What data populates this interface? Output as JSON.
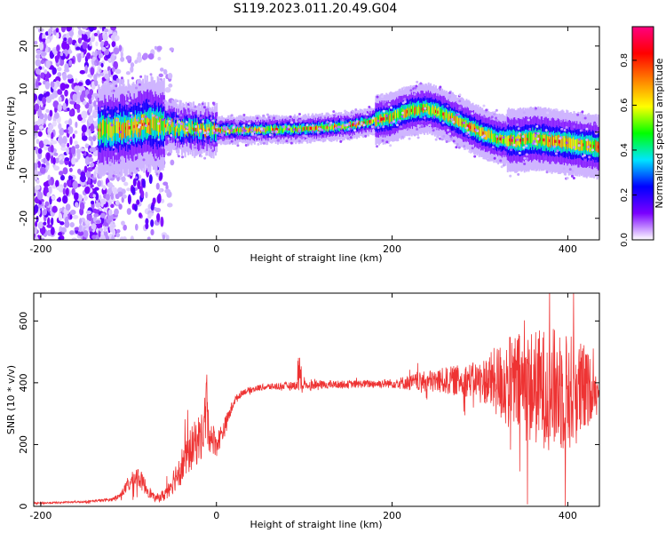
{
  "title": "S119.2023.011.20.49.G04",
  "chart_data": [
    {
      "type": "heatmap",
      "xlabel": "Height of straight line (km)",
      "ylabel": "Frequency (Hz)",
      "xlim": [
        -208,
        436
      ],
      "ylim": [
        -25,
        24.5
      ],
      "x_ticks": [
        -200,
        0,
        200,
        400
      ],
      "y_ticks": [
        -20,
        -10,
        0,
        10,
        20
      ],
      "colorbar": {
        "label": "Normalized spectral amplitude",
        "range": [
          0,
          0.95
        ],
        "ticks": [
          "0.0",
          "0.2",
          "0.4",
          "0.6",
          "0.8"
        ],
        "tick_values": [
          0,
          0.2,
          0.4,
          0.6,
          0.8
        ],
        "colors": [
          "#ffffff",
          "#7a00ff",
          "#0000ff",
          "#00e5ff",
          "#00ff00",
          "#ffff00",
          "#ff8000",
          "#ff0000",
          "#ff0080"
        ]
      },
      "center_track": {
        "x": [
          -130,
          -100,
          -80,
          -60,
          -40,
          -20,
          0,
          50,
          100,
          150,
          175,
          200,
          220,
          240,
          260,
          280,
          300,
          320,
          340,
          360,
          380,
          400,
          420,
          436
        ],
        "y": [
          0.5,
          1,
          2,
          1.5,
          0.8,
          0.5,
          0.5,
          0.5,
          0.8,
          1.5,
          2.5,
          3.5,
          5,
          5.5,
          4,
          2,
          0,
          -1.5,
          -2,
          -1.5,
          -2,
          -2.5,
          -3,
          -3.5
        ]
      }
    },
    {
      "type": "line",
      "xlabel": "Height of straight line (km)",
      "ylabel": "SNR (10 * v/v)",
      "xlim": [
        -208,
        436
      ],
      "ylim": [
        0,
        690
      ],
      "x_ticks": [
        -200,
        0,
        200,
        400
      ],
      "y_ticks": [
        0,
        200,
        400,
        600
      ],
      "series": [
        {
          "color": "#ee3333",
          "x": [
            -208,
            -180,
            -150,
            -120,
            -110,
            -100,
            -90,
            -80,
            -70,
            -60,
            -50,
            -40,
            -30,
            -20,
            -10,
            0,
            10,
            20,
            30,
            50,
            80,
            100,
            150,
            200,
            250,
            300,
            330,
            350,
            380,
            400,
            420,
            436
          ],
          "y": [
            10,
            12,
            15,
            22,
            35,
            70,
            100,
            60,
            25,
            35,
            80,
            130,
            180,
            220,
            250,
            200,
            260,
            340,
            370,
            385,
            390,
            392,
            395,
            398,
            405,
            410,
            400,
            390,
            380,
            370,
            375,
            380
          ],
          "noise": [
            3,
            3,
            3,
            5,
            8,
            25,
            35,
            25,
            10,
            20,
            40,
            60,
            70,
            80,
            70,
            40,
            30,
            15,
            10,
            10,
            12,
            15,
            12,
            15,
            40,
            60,
            150,
            180,
            200,
            200,
            150,
            20
          ]
        }
      ]
    }
  ]
}
